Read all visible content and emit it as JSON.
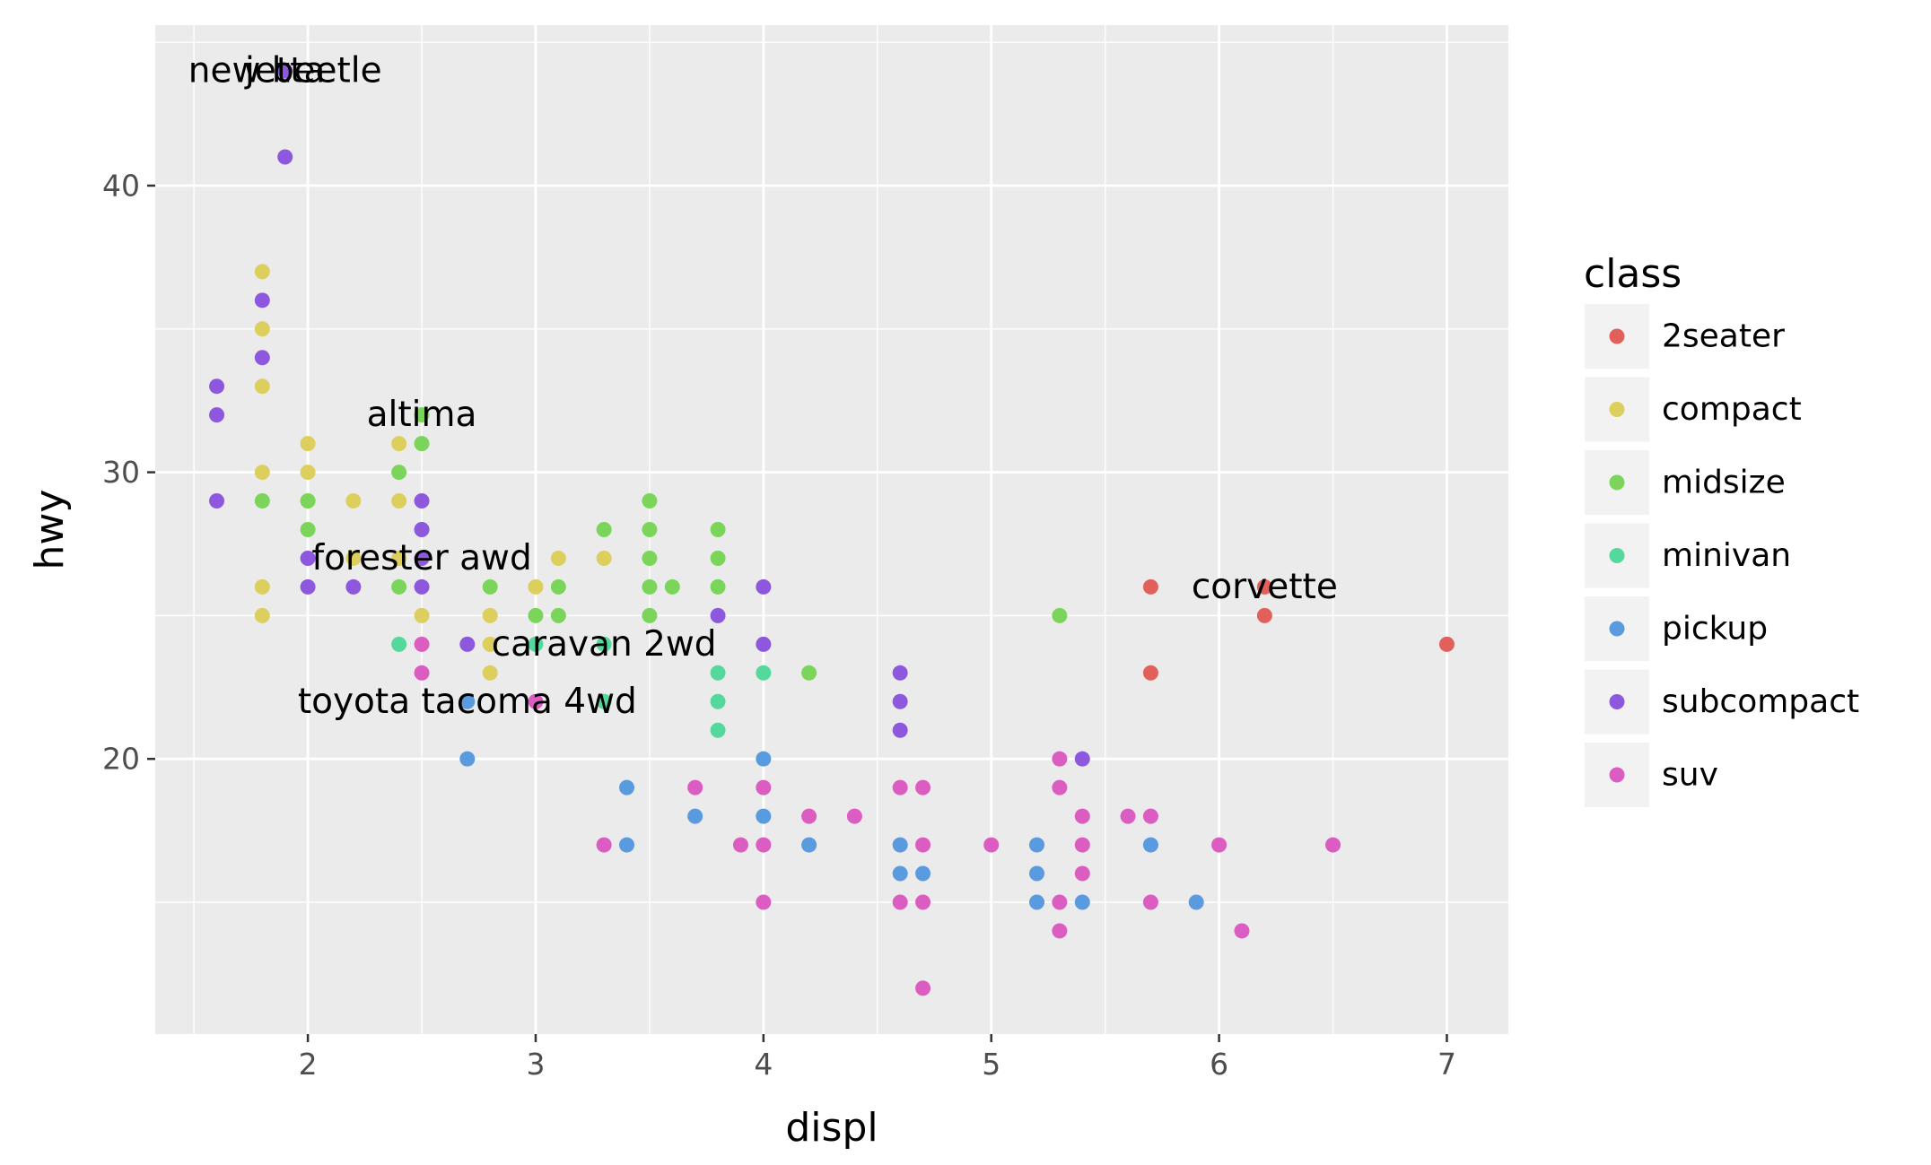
{
  "chart_data": {
    "type": "scatter",
    "title": "",
    "xlabel": "displ",
    "ylabel": "hwy",
    "xlim": [
      1.33,
      7.27
    ],
    "ylim": [
      10.4,
      45.6
    ],
    "x_ticks": [
      2,
      3,
      4,
      5,
      6,
      7
    ],
    "y_ticks": [
      20,
      30,
      40
    ],
    "grid": true,
    "legend": {
      "title": "class",
      "position": "right"
    },
    "colors": {
      "2seater": "#E2605A",
      "compact": "#DCCF5D",
      "midsize": "#7BD55A",
      "minivan": "#55D89C",
      "pickup": "#5A9ADE",
      "subcompact": "#8D58DE",
      "suv": "#DB5DC2"
    },
    "series": [
      {
        "name": "2seater",
        "points": [
          [
            5.7,
            26
          ],
          [
            5.7,
            23
          ],
          [
            6.2,
            26
          ],
          [
            6.2,
            25
          ],
          [
            7.0,
            24
          ]
        ]
      },
      {
        "name": "compact",
        "points": [
          [
            1.8,
            37
          ],
          [
            1.8,
            35
          ],
          [
            1.8,
            33
          ],
          [
            1.8,
            30
          ],
          [
            1.8,
            26
          ],
          [
            1.8,
            25
          ],
          [
            2.0,
            31
          ],
          [
            2.0,
            30
          ],
          [
            2.0,
            29
          ],
          [
            2.2,
            29
          ],
          [
            2.2,
            27
          ],
          [
            2.4,
            31
          ],
          [
            2.4,
            29
          ],
          [
            2.4,
            27
          ],
          [
            2.5,
            27
          ],
          [
            2.5,
            25
          ],
          [
            2.8,
            25
          ],
          [
            2.8,
            24
          ],
          [
            2.8,
            23
          ],
          [
            3.0,
            26
          ],
          [
            3.1,
            27
          ],
          [
            3.3,
            27
          ]
        ]
      },
      {
        "name": "midsize",
        "points": [
          [
            1.8,
            29
          ],
          [
            2.0,
            29
          ],
          [
            2.0,
            28
          ],
          [
            2.4,
            30
          ],
          [
            2.4,
            26
          ],
          [
            2.5,
            32
          ],
          [
            2.5,
            31
          ],
          [
            2.5,
            28
          ],
          [
            2.8,
            26
          ],
          [
            3.0,
            25
          ],
          [
            3.1,
            26
          ],
          [
            3.1,
            25
          ],
          [
            3.3,
            28
          ],
          [
            3.5,
            29
          ],
          [
            3.5,
            28
          ],
          [
            3.5,
            27
          ],
          [
            3.5,
            26
          ],
          [
            3.5,
            25
          ],
          [
            3.6,
            26
          ],
          [
            3.8,
            28
          ],
          [
            3.8,
            27
          ],
          [
            3.8,
            26
          ],
          [
            4.2,
            23
          ],
          [
            5.3,
            25
          ]
        ]
      },
      {
        "name": "minivan",
        "points": [
          [
            2.4,
            24
          ],
          [
            3.0,
            24
          ],
          [
            3.3,
            24
          ],
          [
            3.3,
            22
          ],
          [
            3.8,
            23
          ],
          [
            3.8,
            22
          ],
          [
            3.8,
            21
          ],
          [
            4.0,
            23
          ]
        ]
      },
      {
        "name": "pickup",
        "points": [
          [
            2.7,
            22
          ],
          [
            2.7,
            20
          ],
          [
            3.4,
            19
          ],
          [
            3.4,
            17
          ],
          [
            3.7,
            18
          ],
          [
            4.0,
            20
          ],
          [
            4.0,
            18
          ],
          [
            4.2,
            17
          ],
          [
            4.6,
            17
          ],
          [
            4.6,
            16
          ],
          [
            4.7,
            16
          ],
          [
            5.2,
            17
          ],
          [
            5.2,
            16
          ],
          [
            5.2,
            15
          ],
          [
            5.4,
            15
          ],
          [
            5.7,
            17
          ],
          [
            5.9,
            15
          ]
        ]
      },
      {
        "name": "subcompact",
        "points": [
          [
            1.6,
            33
          ],
          [
            1.6,
            32
          ],
          [
            1.6,
            29
          ],
          [
            1.8,
            36
          ],
          [
            1.8,
            34
          ],
          [
            1.9,
            44
          ],
          [
            1.9,
            41
          ],
          [
            2.0,
            27
          ],
          [
            2.0,
            26
          ],
          [
            2.2,
            26
          ],
          [
            2.5,
            29
          ],
          [
            2.5,
            28
          ],
          [
            2.5,
            27
          ],
          [
            2.5,
            26
          ],
          [
            2.7,
            24
          ],
          [
            3.8,
            25
          ],
          [
            4.0,
            26
          ],
          [
            4.0,
            24
          ],
          [
            4.6,
            23
          ],
          [
            4.6,
            22
          ],
          [
            4.6,
            21
          ],
          [
            5.4,
            20
          ]
        ]
      },
      {
        "name": "suv",
        "points": [
          [
            2.5,
            24
          ],
          [
            2.5,
            23
          ],
          [
            3.0,
            22
          ],
          [
            3.3,
            17
          ],
          [
            3.7,
            19
          ],
          [
            3.9,
            17
          ],
          [
            4.0,
            19
          ],
          [
            4.0,
            17
          ],
          [
            4.0,
            15
          ],
          [
            4.2,
            18
          ],
          [
            4.4,
            18
          ],
          [
            4.6,
            19
          ],
          [
            4.6,
            15
          ],
          [
            4.7,
            19
          ],
          [
            4.7,
            17
          ],
          [
            4.7,
            15
          ],
          [
            4.7,
            12
          ],
          [
            5.0,
            17
          ],
          [
            5.3,
            20
          ],
          [
            5.3,
            19
          ],
          [
            5.3,
            15
          ],
          [
            5.3,
            14
          ],
          [
            5.4,
            18
          ],
          [
            5.4,
            17
          ],
          [
            5.4,
            16
          ],
          [
            5.6,
            18
          ],
          [
            5.7,
            18
          ],
          [
            5.7,
            15
          ],
          [
            6.0,
            17
          ],
          [
            6.1,
            14
          ],
          [
            6.5,
            17
          ]
        ]
      }
    ],
    "annotations": [
      {
        "text": "new beetle",
        "x": 1.9,
        "y": 44
      },
      {
        "text": "jetta",
        "x": 1.9,
        "y": 44
      },
      {
        "text": "altima",
        "x": 2.5,
        "y": 32
      },
      {
        "text": "forester awd",
        "x": 2.5,
        "y": 27
      },
      {
        "text": "caravan 2wd",
        "x": 3.3,
        "y": 24
      },
      {
        "text": "toyota tacoma 4wd",
        "x": 2.7,
        "y": 22
      },
      {
        "text": "corvette",
        "x": 6.2,
        "y": 26
      }
    ]
  }
}
